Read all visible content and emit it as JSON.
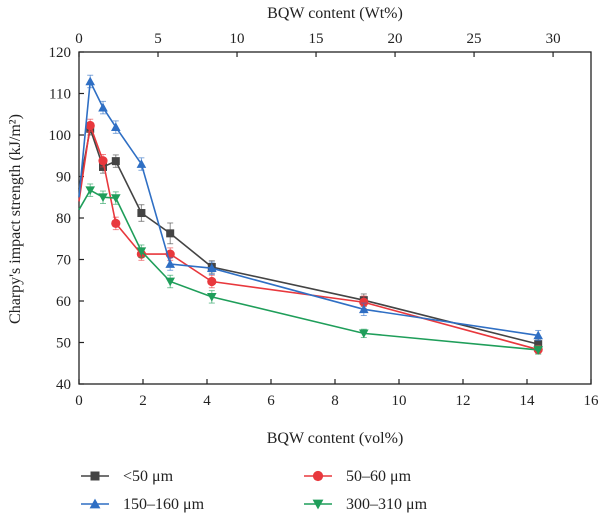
{
  "chart_data": {
    "type": "line",
    "xlabel": "BQW content (vol%)",
    "x2label": "BQW content (Wt%)",
    "ylabel": "Charpy's impact strength (kJ/m²)",
    "xlim": [
      0,
      16
    ],
    "x2lim": [
      0,
      32.4
    ],
    "ylim": [
      40,
      120
    ],
    "xticks": [
      0,
      2,
      4,
      6,
      8,
      10,
      12,
      14,
      16
    ],
    "x2ticks": [
      0,
      5,
      10,
      15,
      20,
      25,
      30
    ],
    "yticks": [
      40,
      50,
      60,
      70,
      80,
      90,
      100,
      110,
      120
    ],
    "grid": false,
    "legend_position": "bottom",
    "series": [
      {
        "name": "<50 μm",
        "marker": "square",
        "color": "#444444",
        "x": [
          0,
          0.35,
          0.75,
          1.15,
          1.95,
          2.85,
          4.15,
          8.9,
          14.35
        ],
        "y": [
          87,
          101.5,
          92.3,
          93.7,
          81.2,
          76.3,
          68.2,
          60.2,
          49.6
        ],
        "err": [
          1.5,
          1.5,
          1.5,
          1.5,
          2.0,
          2.5,
          1.5,
          1.5,
          1.2
        ]
      },
      {
        "name": "50–60 μm",
        "marker": "circle",
        "color": "#e8383d",
        "x": [
          0,
          0.35,
          0.75,
          1.15,
          1.95,
          2.85,
          4.15,
          8.9,
          14.35
        ],
        "y": [
          84,
          102.3,
          93.8,
          78.7,
          71.3,
          71.3,
          64.7,
          59.7,
          48.3
        ],
        "err": [
          1.5,
          1.5,
          1.5,
          1.5,
          1.5,
          1.5,
          1.5,
          1.5,
          1.0
        ]
      },
      {
        "name": "150–160 μm",
        "marker": "triangle-up",
        "color": "#2f6fc4",
        "x": [
          0,
          0.35,
          0.75,
          1.15,
          1.95,
          2.85,
          4.15,
          8.9,
          14.35
        ],
        "y": [
          85,
          112.9,
          106.6,
          101.9,
          93.0,
          68.9,
          67.9,
          58.0,
          51.7
        ],
        "err": [
          1.5,
          1.5,
          1.5,
          1.5,
          1.5,
          1.5,
          1.5,
          1.5,
          1.2
        ]
      },
      {
        "name": "300–310 μm",
        "marker": "triangle-down",
        "color": "#1f9e5a",
        "x": [
          0,
          0.35,
          0.75,
          1.15,
          1.95,
          2.85,
          4.15,
          8.9,
          14.35
        ],
        "y": [
          82,
          86.7,
          85.0,
          84.8,
          72.0,
          64.7,
          61.0,
          52.2,
          48.2
        ],
        "err": [
          1.5,
          1.5,
          1.5,
          1.5,
          1.5,
          1.5,
          1.5,
          1.0,
          1.0
        ]
      }
    ]
  }
}
